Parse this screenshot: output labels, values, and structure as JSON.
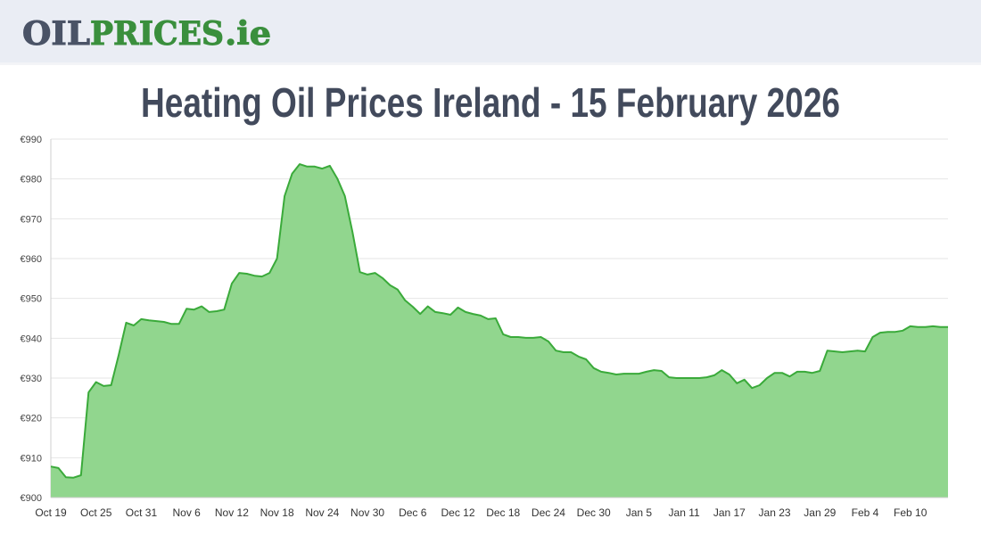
{
  "header": {
    "logo_oil": "OIL",
    "logo_prices": "PRICES",
    "logo_tld": ".ie"
  },
  "chart_data": {
    "type": "area",
    "title": "Heating Oil Prices Ireland - 15 February 2026",
    "categories": [
      "Oct 19",
      null,
      null,
      null,
      null,
      null,
      "Oct 25",
      null,
      null,
      null,
      null,
      null,
      "Oct 31",
      null,
      null,
      null,
      null,
      null,
      "Nov 6",
      null,
      null,
      null,
      null,
      null,
      "Nov 12",
      null,
      null,
      null,
      null,
      null,
      "Nov 18",
      null,
      null,
      null,
      null,
      null,
      "Nov 24",
      null,
      null,
      null,
      null,
      null,
      "Nov 30",
      null,
      null,
      null,
      null,
      null,
      "Dec 6",
      null,
      null,
      null,
      null,
      null,
      "Dec 12",
      null,
      null,
      null,
      null,
      null,
      "Dec 18",
      null,
      null,
      null,
      null,
      null,
      "Dec 24",
      null,
      null,
      null,
      null,
      null,
      "Dec 30",
      null,
      null,
      null,
      null,
      null,
      "Jan 5",
      null,
      null,
      null,
      null,
      null,
      "Jan 11",
      null,
      null,
      null,
      null,
      null,
      "Jan 17",
      null,
      null,
      null,
      null,
      null,
      "Jan 23",
      null,
      null,
      null,
      null,
      null,
      "Jan 29",
      null,
      null,
      null,
      null,
      null,
      "Feb 4",
      null,
      null,
      null,
      null,
      null,
      "Feb 10",
      null,
      null,
      null,
      null,
      null
    ],
    "values": [
      907.8,
      907.4,
      905.1,
      905,
      905.6,
      926.4,
      929,
      928,
      928.2,
      935.8,
      943.9,
      943.2,
      944.8,
      944.5,
      944.3,
      944.1,
      943.6,
      943.6,
      947.4,
      947.2,
      948,
      946.6,
      946.8,
      947.2,
      953.7,
      956.4,
      956.2,
      955.7,
      955.5,
      956.4,
      960,
      975.7,
      981.3,
      983.7,
      983.1,
      983.1,
      982.6,
      983.3,
      980.1,
      975.7,
      966.7,
      956.6,
      956,
      956.4,
      955.1,
      953.3,
      952.2,
      949.5,
      947.9,
      946.1,
      948,
      946.6,
      946.3,
      945.9,
      947.7,
      946.6,
      946.1,
      945.7,
      944.8,
      945,
      941,
      940.3,
      940.3,
      940.1,
      940.1,
      940.3,
      939.2,
      936.9,
      936.5,
      936.5,
      935.4,
      934.7,
      932.5,
      931.6,
      931.3,
      930.9,
      931.1,
      931.1,
      931.1,
      931.6,
      932,
      931.8,
      930.2,
      930,
      930,
      930,
      930,
      930.2,
      930.7,
      932,
      930.9,
      928.7,
      929.6,
      927.5,
      928.2,
      930,
      931.3,
      931.3,
      930.4,
      931.6,
      931.6,
      931.3,
      931.8,
      936.9,
      936.7,
      936.5,
      936.7,
      936.9,
      936.7,
      940.3,
      941.4,
      941.6,
      941.6,
      941.9,
      943,
      942.8,
      942.8,
      943,
      942.8,
      942.8
    ],
    "color": "#3aaa3a",
    "fill": "#91d68e",
    "ylim": [
      900,
      990
    ],
    "yticks": [
      {
        "value": 900,
        "label": "€900"
      },
      {
        "value": 910,
        "label": "€910"
      },
      {
        "value": 920,
        "label": "€920"
      },
      {
        "value": 930,
        "label": "€930"
      },
      {
        "value": 940,
        "label": "€940"
      },
      {
        "value": 950,
        "label": "€950"
      },
      {
        "value": 960,
        "label": "€960"
      },
      {
        "value": 970,
        "label": "€970"
      },
      {
        "value": 980,
        "label": "€980"
      },
      {
        "value": 990,
        "label": "€990"
      }
    ],
    "grid": true
  }
}
